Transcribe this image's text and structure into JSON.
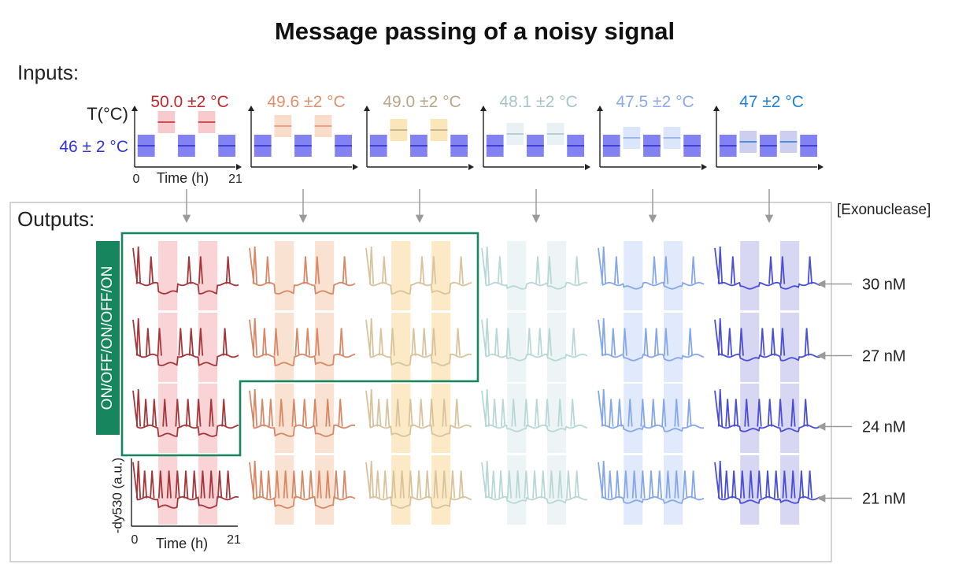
{
  "title": "Message passing of a noisy signal",
  "inputs_label": "Inputs:",
  "outputs_label": "Outputs:",
  "temperature_axis_label": "T(°C)",
  "base_temperature": "46 ± 2 °C",
  "input_time_label": "Time (h)",
  "input_time_start": "0",
  "input_time_end": "21",
  "exonuclease_label": "[Exonuclease]",
  "region_label": "ON/OFF/ON/OFF/ON",
  "output_ylabel": "-dy530 (a.u.)",
  "output_time_label": "Time (h)",
  "output_time_start": "0",
  "output_time_end": "21",
  "columns": [
    {
      "temp_label": "50.0 ±2 °C",
      "color": "#c1272d",
      "trace_color": "#a5373a",
      "band_color": "#f8c4c8",
      "band_opacity": 0.75
    },
    {
      "temp_label": "49.6 ±2 °C",
      "color": "#e2906b",
      "trace_color": "#d98866",
      "band_color": "#f8d8c3",
      "band_opacity": 0.75
    },
    {
      "temp_label": "49.0 ±2 °C",
      "color": "#b8a68a",
      "trace_color": "#d8c39c",
      "band_color": "#fbe3b3",
      "band_opacity": 0.75
    },
    {
      "temp_label": "48.1 ±2 °C",
      "color": "#a8c4c8",
      "trace_color": "#b8d8d6",
      "band_color": "#e6f0f2",
      "band_opacity": 0.75
    },
    {
      "temp_label": "47.5 ±2 °C",
      "color": "#8aaae8",
      "trace_color": "#86a8ea",
      "band_color": "#d7e3fb",
      "band_opacity": 0.75
    },
    {
      "temp_label": "47 ±2 °C",
      "color": "#1f7fdc",
      "trace_color": "#4a4fd4",
      "band_color": "#c9c9f0",
      "band_opacity": 0.75
    }
  ],
  "rows": [
    {
      "label": "30 nM"
    },
    {
      "label": "27 nM"
    },
    {
      "label": "24 nM"
    },
    {
      "label": "21 nM"
    }
  ],
  "colors": {
    "title": "#111111",
    "text": "#222222",
    "base_temp": "#3333dd",
    "base_band": "#6c6cf0",
    "green": "#17865f",
    "gray": "#9a9a9a",
    "box": "#bdbdbd"
  }
}
